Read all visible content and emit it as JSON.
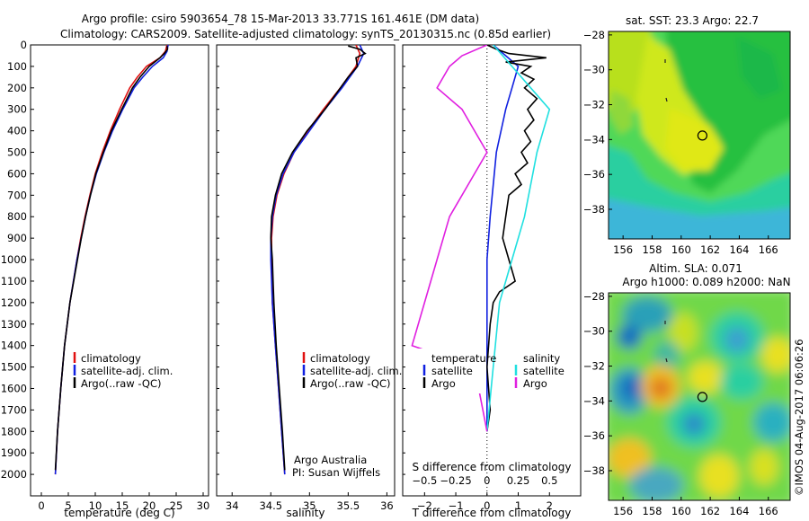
{
  "header": {
    "title_line1": "Argo profile: csiro 5903654_78 15-Mar-2013 33.771S 161.461E (DM data)",
    "title_line2": "Climatology: CARS2009. Satellite-adjusted climatology: synTS_20130315.nc (0.85d earlier)"
  },
  "colors": {
    "climatology": "#e01010",
    "satellite": "#1020e0",
    "argo": "#000000",
    "cyan": "#20e0e0",
    "magenta": "#e020e0"
  },
  "chart_data": [
    {
      "type": "line",
      "id": "temperature",
      "xlabel": "temperature (deg C)",
      "ylabel": "",
      "xlim": [
        -2,
        31
      ],
      "ylim": [
        2100,
        0
      ],
      "xticks": [
        0,
        5,
        10,
        15,
        20,
        25,
        30
      ],
      "yticks": [
        0,
        100,
        200,
        300,
        400,
        500,
        600,
        700,
        800,
        900,
        1000,
        1100,
        1200,
        1300,
        1400,
        1500,
        1600,
        1700,
        1800,
        1900,
        2000
      ],
      "legend": [
        "climatology",
        "satellite-adj. clim.",
        "Argo(..raw -QC)"
      ],
      "series": [
        {
          "name": "climatology",
          "depth": [
            0,
            30,
            60,
            100,
            150,
            200,
            300,
            400,
            500,
            600,
            700,
            800,
            900,
            1000,
            1200,
            1400,
            1600,
            1800,
            2000
          ],
          "values": [
            23.3,
            23.0,
            22.0,
            19.5,
            17.8,
            16.4,
            14.5,
            12.8,
            11.3,
            10.0,
            9.0,
            8.1,
            7.3,
            6.6,
            5.3,
            4.3,
            3.6,
            3.0,
            2.6
          ]
        },
        {
          "name": "satellite-adj. clim.",
          "depth": [
            0,
            30,
            60,
            100,
            150,
            200,
            300,
            400,
            500,
            600,
            700,
            800,
            900,
            1000,
            1200,
            1400,
            1600,
            1800,
            2000
          ],
          "values": [
            23.5,
            23.3,
            22.6,
            20.6,
            18.8,
            17.2,
            15.1,
            13.2,
            11.6,
            10.2,
            9.1,
            8.2,
            7.4,
            6.6,
            5.3,
            4.3,
            3.6,
            3.0,
            2.6
          ]
        },
        {
          "name": "Argo",
          "depth": [
            5,
            20,
            40,
            60,
            80,
            100,
            150,
            200,
            300,
            400,
            500,
            600,
            700,
            800,
            900,
            1000,
            1100,
            1200,
            1400,
            1600,
            1800,
            1980
          ],
          "values": [
            23.3,
            23.4,
            22.8,
            22.0,
            21.0,
            20.0,
            18.3,
            16.9,
            14.9,
            13.0,
            11.5,
            10.1,
            9.1,
            8.2,
            7.4,
            6.7,
            6.0,
            5.3,
            4.3,
            3.6,
            3.0,
            2.6
          ]
        }
      ]
    },
    {
      "type": "line",
      "id": "salinity",
      "xlabel": "salinity",
      "ylabel": "",
      "xlim": [
        33.8,
        36.1
      ],
      "ylim": [
        2100,
        0
      ],
      "xticks": [
        34,
        34.5,
        35,
        35.5,
        36
      ],
      "legend": [
        "climatology",
        "satellite-adj. clim.",
        "Argo(..raw -QC)"
      ],
      "annotations": [
        "Argo Australia",
        "PI: Susan Wijffels"
      ],
      "series": [
        {
          "name": "climatology",
          "depth": [
            0,
            40,
            100,
            200,
            300,
            400,
            500,
            600,
            700,
            800,
            900,
            1000,
            1200,
            1400,
            1600,
            1800,
            2000
          ],
          "values": [
            35.6,
            35.65,
            35.6,
            35.4,
            35.18,
            34.98,
            34.8,
            34.67,
            34.58,
            34.53,
            34.51,
            34.51,
            34.52,
            34.56,
            34.6,
            34.64,
            34.68
          ]
        },
        {
          "name": "satellite-adj. clim.",
          "depth": [
            0,
            40,
            100,
            200,
            300,
            400,
            500,
            600,
            700,
            800,
            900,
            1000,
            1200,
            1400,
            1600,
            1800,
            2000
          ],
          "values": [
            35.65,
            35.7,
            35.62,
            35.42,
            35.2,
            35.0,
            34.8,
            34.66,
            34.57,
            34.52,
            34.5,
            34.5,
            34.52,
            34.56,
            34.6,
            34.64,
            34.68
          ]
        },
        {
          "name": "Argo",
          "depth": [
            5,
            20,
            40,
            60,
            100,
            150,
            200,
            300,
            400,
            500,
            600,
            700,
            800,
            900,
            1000,
            1100,
            1200,
            1400,
            1600,
            1800,
            1980
          ],
          "values": [
            35.5,
            35.65,
            35.72,
            35.6,
            35.62,
            35.5,
            35.4,
            35.2,
            34.97,
            34.78,
            34.64,
            34.56,
            34.51,
            34.5,
            34.52,
            34.53,
            34.54,
            34.57,
            34.61,
            34.65,
            34.68
          ]
        }
      ]
    },
    {
      "type": "line",
      "id": "difference",
      "xlabel": "T difference from climatology",
      "xlabel_top": "S difference from climatology",
      "xlim": [
        -2.7,
        3.0
      ],
      "ylim": [
        2100,
        0
      ],
      "xticks": [
        -2,
        -1,
        0,
        1,
        2
      ],
      "xticks_top_labels": [
        "-0.5",
        "-0.25",
        "0",
        "0.25",
        "0.5"
      ],
      "legend_groups": [
        {
          "heading": "temperature",
          "items": [
            "satellite",
            "Argo"
          ]
        },
        {
          "heading": "salinity",
          "items": [
            "satellite",
            "Argo"
          ]
        }
      ],
      "series": [
        {
          "name": "temperature satellite",
          "depth": [
            0,
            50,
            100,
            200,
            300,
            500,
            800,
            1000,
            1200,
            1500,
            1800
          ],
          "values": [
            0.2,
            0.6,
            1.0,
            0.8,
            0.6,
            0.3,
            0.1,
            0.0,
            0.0,
            0.0,
            0.0
          ]
        },
        {
          "name": "temperature Argo",
          "depth": [
            0,
            20,
            40,
            60,
            80,
            100,
            130,
            160,
            200,
            250,
            300,
            350,
            400,
            450,
            500,
            550,
            600,
            650,
            700,
            800,
            900,
            1000,
            1100,
            1150,
            1200,
            1300,
            1500,
            1700,
            1800
          ],
          "values": [
            0.0,
            0.3,
            0.7,
            1.9,
            0.6,
            1.4,
            1.1,
            1.5,
            1.2,
            1.6,
            1.3,
            1.5,
            1.2,
            1.4,
            1.1,
            1.3,
            0.9,
            1.1,
            0.7,
            0.6,
            0.5,
            0.7,
            0.9,
            0.4,
            0.2,
            0.1,
            0.0,
            0.1,
            0.0
          ]
        },
        {
          "name": "salinity satellite",
          "depth": [
            0,
            100,
            200,
            300,
            500,
            800,
            1000,
            1200,
            1500,
            1800
          ],
          "values": [
            0.05,
            0.2,
            0.35,
            0.5,
            0.4,
            0.3,
            0.2,
            0.1,
            0.05,
            0.0
          ]
        },
        {
          "name": "salinity Argo",
          "depth": [
            0,
            50,
            100,
            200,
            300,
            400,
            500,
            600,
            800,
            1000,
            1200,
            1400,
            1500,
            1800
          ],
          "values": [
            0.0,
            -0.2,
            -0.3,
            -0.4,
            -0.2,
            -0.1,
            0.0,
            -0.1,
            -0.3,
            -0.4,
            -0.5,
            -0.6,
            -0.1,
            0.0
          ]
        }
      ]
    },
    {
      "type": "heatmap",
      "id": "sst-map",
      "title": "sat. SST: 23.3 Argo: 22.7",
      "xticks": [
        156,
        158,
        160,
        162,
        164,
        166
      ],
      "yticks": [
        -28,
        -30,
        -32,
        -34,
        -36,
        -38
      ],
      "xlim": [
        155,
        167.5
      ],
      "ylim": [
        -39.7,
        -27.8
      ],
      "marker": {
        "lon": 161.461,
        "lat": -33.771
      }
    },
    {
      "type": "heatmap",
      "id": "sla-map",
      "title_line1": "Altim. SLA: 0.071",
      "title_line2": "Argo h1000: 0.089 h2000: NaN",
      "xticks": [
        156,
        158,
        160,
        162,
        164,
        166
      ],
      "yticks": [
        -28,
        -30,
        -32,
        -34,
        -36,
        -38
      ],
      "xlim": [
        155,
        167.5
      ],
      "ylim": [
        -39.7,
        -27.8
      ],
      "marker": {
        "lon": 161.461,
        "lat": -33.771
      }
    }
  ],
  "legend_labels": {
    "climatology": "climatology",
    "satellite_adj": "satellite-adj. clim.",
    "argo_raw": "Argo(..raw -QC)",
    "temperature": "temperature",
    "salinity": "salinity",
    "satellite": "satellite",
    "argo": "Argo"
  },
  "credits": {
    "institution": "Argo Australia",
    "pi": "PI: Susan Wijffels",
    "stamp": "©IMOS 04-Aug-2017 06:06:26"
  }
}
